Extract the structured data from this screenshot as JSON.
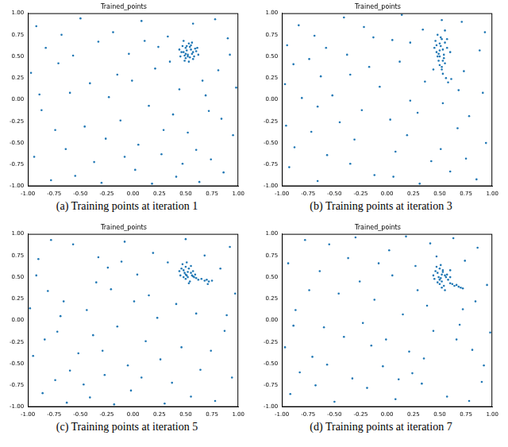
{
  "chart_data": [
    {
      "type": "scatter",
      "title": "Trained_points",
      "caption": "(a) Training points at iteration 1",
      "color": "#1f77b4",
      "marker": "circle",
      "grid": false,
      "xlim": [
        -1,
        1
      ],
      "ylim": [
        -1,
        1
      ],
      "xticks": [
        {
          "value": -1,
          "label": "-1.00"
        },
        {
          "value": -0.75,
          "label": "-0.75"
        },
        {
          "value": -0.5,
          "label": "-0.50"
        },
        {
          "value": -0.25,
          "label": "-0.25"
        },
        {
          "value": 0,
          "label": "0.00"
        },
        {
          "value": 0.25,
          "label": "0.25"
        },
        {
          "value": 0.5,
          "label": "0.50"
        },
        {
          "value": 0.75,
          "label": "0.75"
        },
        {
          "value": 1,
          "label": "1.00"
        }
      ],
      "yticks": [
        {
          "value": -1,
          "label": "-1.00"
        },
        {
          "value": -0.75,
          "label": "-0.75"
        },
        {
          "value": -0.5,
          "label": "-0.50"
        },
        {
          "value": -0.25,
          "label": "-0.25"
        },
        {
          "value": 0,
          "label": "0.00"
        },
        {
          "value": 0.25,
          "label": "0.25"
        },
        {
          "value": 0.5,
          "label": "0.50"
        },
        {
          "value": 0.75,
          "label": "0.75"
        },
        {
          "value": 1,
          "label": "1.00"
        }
      ],
      "x": [
        -0.92,
        -0.71,
        -0.55,
        -0.33,
        -0.12,
        0.08,
        0.27,
        0.44,
        0.63,
        0.81,
        0.95,
        -0.87,
        -0.64,
        -0.41,
        -0.19,
        0.02,
        0.21,
        0.38,
        0.57,
        0.74,
        0.9,
        -0.97,
        -0.78,
        -0.5,
        -0.26,
        -0.04,
        0.15,
        0.33,
        0.52,
        0.69,
        0.86,
        -0.83,
        -0.6,
        -0.37,
        -0.15,
        0.05,
        0.24,
        0.41,
        0.66,
        0.78,
        0.98,
        -0.94,
        -0.68,
        -0.46,
        -0.23,
        -0.01,
        0.18,
        0.35,
        0.6,
        0.84,
        -0.89,
        -0.57,
        -0.3,
        -0.08,
        0.11,
        0.29,
        0.47,
        0.72,
        0.92,
        -0.74,
        0.45,
        0.48,
        0.5,
        0.52,
        0.55,
        0.58,
        0.6,
        0.47,
        0.5,
        0.53,
        0.56,
        0.49,
        0.51,
        0.54,
        0.57,
        0.46,
        0.52,
        0.55,
        0.59,
        0.62,
        0.48,
        0.5,
        0.53,
        0.44,
        0.57,
        0.51,
        0.54,
        0.49,
        0.61,
        0.56
      ],
      "y": [
        0.85,
        0.42,
        -0.88,
        0.67,
        -0.24,
        0.91,
        -0.63,
        0.12,
        -0.95,
        0.34,
        -0.41,
        -0.12,
        -0.57,
        0.19,
        0.78,
        -0.81,
        0.36,
        -0.17,
        0.88,
        -0.69,
        0.71,
        0.31,
        -0.93,
        0.94,
        -0.45,
        0.53,
        -0.07,
        0.73,
        -0.38,
        0.05,
        -0.84,
        0.6,
        0.08,
        -0.72,
        0.29,
        -0.52,
        0.61,
        -0.89,
        0.22,
        0.93,
        0.14,
        -0.66,
        0.75,
        -0.31,
        0.03,
        0.22,
        -0.97,
        0.44,
        -0.58,
        -0.22,
        0.06,
        0.51,
        -0.96,
        -0.66,
        0.68,
        -0.35,
        -0.74,
        -0.13,
        0.52,
        -0.35,
        0.5,
        0.55,
        0.6,
        0.52,
        0.58,
        0.5,
        0.56,
        0.62,
        0.48,
        0.65,
        0.53,
        0.45,
        0.57,
        0.61,
        0.47,
        0.55,
        0.5,
        0.63,
        0.59,
        0.52,
        0.68,
        0.53,
        0.44,
        0.58,
        0.55,
        0.62,
        0.49,
        0.51,
        0.6,
        0.66
      ]
    },
    {
      "type": "scatter",
      "title": "Trained_points",
      "caption": "(b) Training points at iteration 3",
      "color": "#1f77b4",
      "marker": "circle",
      "grid": false,
      "xlim": [
        -1,
        1
      ],
      "ylim": [
        -1,
        1
      ],
      "xticks": [
        {
          "value": -1,
          "label": "-1.00"
        },
        {
          "value": -0.75,
          "label": "-0.75"
        },
        {
          "value": -0.5,
          "label": "-0.50"
        },
        {
          "value": -0.25,
          "label": "-0.25"
        },
        {
          "value": 0,
          "label": "0.00"
        },
        {
          "value": 0.25,
          "label": "0.25"
        },
        {
          "value": 0.5,
          "label": "0.50"
        },
        {
          "value": 0.75,
          "label": "0.75"
        },
        {
          "value": 1,
          "label": "1.00"
        }
      ],
      "yticks": [
        {
          "value": -1,
          "label": "-1.00"
        },
        {
          "value": -0.75,
          "label": "-0.75"
        },
        {
          "value": -0.5,
          "label": "-0.50"
        },
        {
          "value": -0.25,
          "label": "-0.25"
        },
        {
          "value": 0,
          "label": "0.00"
        },
        {
          "value": 0.25,
          "label": "0.25"
        },
        {
          "value": 0.5,
          "label": "0.50"
        },
        {
          "value": 0.75,
          "label": "0.75"
        },
        {
          "value": 1,
          "label": "1.00"
        }
      ],
      "x": [
        0.85,
        0.42,
        -0.88,
        0.67,
        -0.24,
        0.91,
        -0.63,
        0.12,
        -0.95,
        0.34,
        -0.41,
        -0.12,
        -0.57,
        0.19,
        0.78,
        -0.81,
        0.36,
        -0.17,
        0.88,
        -0.69,
        0.71,
        0.31,
        -0.93,
        0.94,
        -0.45,
        0.53,
        -0.07,
        0.73,
        -0.38,
        0.05,
        -0.84,
        0.6,
        0.08,
        -0.72,
        0.29,
        -0.52,
        0.61,
        -0.89,
        0.22,
        0.93,
        0.14,
        -0.66,
        0.75,
        -0.31,
        0.03,
        0.22,
        -0.97,
        0.44,
        -0.58,
        -0.22,
        0.06,
        0.51,
        -0.96,
        -0.66,
        0.68,
        -0.35,
        -0.74,
        -0.13,
        0.52,
        -0.35,
        0.45,
        0.47,
        0.5,
        0.52,
        0.48,
        0.55,
        0.5,
        0.53,
        0.46,
        0.49,
        0.51,
        0.54,
        0.57,
        0.5,
        0.52,
        0.55,
        0.53,
        0.56,
        0.58,
        0.54,
        0.6,
        0.51,
        0.48,
        0.5,
        0.47,
        0.52,
        0.55,
        0.49,
        0.53,
        0.57
      ],
      "y": [
        -0.92,
        -0.71,
        -0.55,
        -0.33,
        -0.12,
        0.08,
        0.27,
        0.44,
        0.63,
        0.81,
        0.95,
        -0.87,
        -0.64,
        -0.41,
        -0.19,
        0.02,
        0.21,
        0.38,
        0.57,
        0.74,
        0.9,
        -0.97,
        -0.78,
        -0.5,
        -0.26,
        -0.04,
        0.15,
        0.33,
        0.52,
        0.69,
        0.86,
        -0.83,
        -0.6,
        -0.37,
        -0.15,
        0.05,
        0.24,
        0.41,
        0.66,
        0.78,
        0.98,
        -0.94,
        -0.68,
        -0.46,
        -0.23,
        -0.01,
        0.18,
        0.35,
        0.6,
        0.84,
        -0.89,
        -0.57,
        -0.3,
        -0.08,
        0.11,
        0.29,
        0.47,
        0.72,
        0.92,
        -0.74,
        0.6,
        0.55,
        0.65,
        0.7,
        0.75,
        0.8,
        0.5,
        0.58,
        0.68,
        0.45,
        0.62,
        0.52,
        0.6,
        0.4,
        0.35,
        0.42,
        0.3,
        0.25,
        0.2,
        0.48,
        0.55,
        0.72,
        0.5,
        0.57,
        0.63,
        0.38,
        0.66,
        0.53,
        0.45,
        0.7
      ]
    },
    {
      "type": "scatter",
      "title": "Trained_points",
      "caption": "(c) Training points at iteration 5",
      "color": "#1f77b4",
      "marker": "circle",
      "grid": false,
      "xlim": [
        -1,
        1
      ],
      "ylim": [
        -1,
        1
      ],
      "xticks": [
        {
          "value": -1,
          "label": "-1.00"
        },
        {
          "value": -0.75,
          "label": "-0.75"
        },
        {
          "value": -0.5,
          "label": "-0.50"
        },
        {
          "value": -0.25,
          "label": "-0.25"
        },
        {
          "value": 0,
          "label": "0.00"
        },
        {
          "value": 0.25,
          "label": "0.25"
        },
        {
          "value": 0.5,
          "label": "0.50"
        },
        {
          "value": 0.75,
          "label": "0.75"
        },
        {
          "value": 1,
          "label": "1.00"
        }
      ],
      "yticks": [
        {
          "value": -1,
          "label": "-1.00"
        },
        {
          "value": -0.75,
          "label": "-0.75"
        },
        {
          "value": -0.5,
          "label": "-0.50"
        },
        {
          "value": -0.25,
          "label": "-0.25"
        },
        {
          "value": 0,
          "label": "0.00"
        },
        {
          "value": 0.25,
          "label": "0.25"
        },
        {
          "value": 0.5,
          "label": "0.50"
        },
        {
          "value": 0.75,
          "label": "0.75"
        },
        {
          "value": 1,
          "label": "1.00"
        }
      ],
      "x": [
        0.92,
        0.71,
        0.55,
        0.33,
        0.12,
        -0.08,
        -0.27,
        -0.44,
        -0.63,
        -0.81,
        -0.95,
        0.87,
        0.64,
        0.41,
        0.19,
        -0.02,
        -0.21,
        -0.38,
        -0.57,
        -0.74,
        -0.9,
        0.97,
        0.78,
        0.5,
        0.26,
        0.04,
        -0.15,
        -0.33,
        -0.52,
        -0.69,
        -0.86,
        0.83,
        0.6,
        0.37,
        0.15,
        -0.05,
        -0.24,
        -0.41,
        -0.66,
        -0.78,
        -0.98,
        0.94,
        0.68,
        0.46,
        0.23,
        0.01,
        -0.18,
        -0.35,
        -0.6,
        -0.84,
        0.89,
        0.57,
        0.3,
        0.08,
        -0.11,
        -0.29,
        -0.47,
        -0.72,
        -0.92,
        0.74,
        0.45,
        0.48,
        0.5,
        0.52,
        0.55,
        0.47,
        0.5,
        0.53,
        0.56,
        0.49,
        0.51,
        0.54,
        0.58,
        0.46,
        0.52,
        0.6,
        0.62,
        0.65,
        0.68,
        0.7,
        0.72,
        0.75,
        0.5,
        0.53,
        0.48,
        0.55,
        0.57,
        0.51,
        0.44,
        0.59
      ],
      "y": [
        0.85,
        0.42,
        -0.88,
        0.67,
        -0.24,
        0.91,
        -0.63,
        0.12,
        -0.95,
        0.34,
        -0.41,
        -0.12,
        -0.57,
        0.19,
        0.78,
        -0.81,
        0.36,
        -0.17,
        0.88,
        -0.69,
        0.71,
        0.31,
        -0.93,
        0.94,
        -0.45,
        0.53,
        -0.07,
        0.73,
        -0.38,
        0.05,
        -0.84,
        0.6,
        0.08,
        -0.72,
        0.29,
        -0.52,
        0.61,
        -0.89,
        0.22,
        0.93,
        0.14,
        -0.66,
        0.75,
        -0.31,
        0.03,
        0.22,
        -0.97,
        0.44,
        -0.58,
        -0.22,
        0.06,
        0.51,
        -0.96,
        -0.66,
        0.68,
        -0.35,
        -0.74,
        -0.13,
        0.52,
        -0.35,
        0.52,
        0.58,
        0.62,
        0.5,
        0.55,
        0.65,
        0.48,
        0.6,
        0.52,
        0.55,
        0.67,
        0.45,
        0.5,
        0.6,
        0.56,
        0.49,
        0.47,
        0.48,
        0.46,
        0.47,
        0.45,
        0.46,
        0.53,
        0.43,
        0.5,
        0.63,
        0.57,
        0.52,
        0.57,
        0.53
      ]
    },
    {
      "type": "scatter",
      "title": "Trained_points",
      "caption": "(d) Training points at iteration 7",
      "color": "#1f77b4",
      "marker": "circle",
      "grid": false,
      "xlim": [
        -1,
        1
      ],
      "ylim": [
        -1,
        1
      ],
      "xticks": [
        {
          "value": -1,
          "label": "-1.00"
        },
        {
          "value": -0.75,
          "label": "-0.75"
        },
        {
          "value": -0.5,
          "label": "-0.50"
        },
        {
          "value": -0.25,
          "label": "-0.25"
        },
        {
          "value": 0,
          "label": "0.00"
        },
        {
          "value": 0.25,
          "label": "0.25"
        },
        {
          "value": 0.5,
          "label": "0.50"
        },
        {
          "value": 0.75,
          "label": "0.75"
        },
        {
          "value": 1,
          "label": "1.00"
        }
      ],
      "yticks": [
        {
          "value": -1,
          "label": "-1.00"
        },
        {
          "value": -0.75,
          "label": "-0.75"
        },
        {
          "value": -0.5,
          "label": "-0.50"
        },
        {
          "value": -0.25,
          "label": "-0.25"
        },
        {
          "value": 0,
          "label": "0.00"
        },
        {
          "value": 0.25,
          "label": "0.25"
        },
        {
          "value": 0.5,
          "label": "0.50"
        },
        {
          "value": 0.75,
          "label": "0.75"
        },
        {
          "value": 1,
          "label": "1.00"
        }
      ],
      "x": [
        -0.92,
        -0.71,
        -0.55,
        -0.33,
        -0.12,
        0.08,
        0.27,
        0.44,
        0.63,
        0.81,
        0.95,
        -0.87,
        -0.64,
        -0.41,
        -0.19,
        0.02,
        0.21,
        0.38,
        0.57,
        0.74,
        0.9,
        -0.97,
        -0.78,
        -0.5,
        -0.26,
        -0.04,
        0.15,
        0.33,
        0.52,
        0.69,
        0.86,
        -0.83,
        -0.6,
        -0.37,
        -0.15,
        0.05,
        0.24,
        0.41,
        0.66,
        0.78,
        0.98,
        -0.94,
        -0.68,
        -0.46,
        -0.23,
        -0.01,
        0.18,
        0.35,
        0.6,
        0.84,
        -0.89,
        -0.57,
        -0.3,
        -0.08,
        0.11,
        0.29,
        0.47,
        0.72,
        0.92,
        -0.74,
        0.45,
        0.48,
        0.5,
        0.52,
        0.55,
        0.47,
        0.5,
        0.53,
        0.56,
        0.49,
        0.51,
        0.54,
        0.58,
        0.46,
        0.52,
        0.6,
        0.62,
        0.64,
        0.66,
        0.68,
        0.7,
        0.72,
        0.5,
        0.53,
        0.48,
        0.55,
        0.57,
        0.51,
        0.44,
        0.6
      ],
      "y": [
        -0.85,
        -0.42,
        0.88,
        -0.67,
        0.24,
        -0.91,
        0.63,
        -0.12,
        0.95,
        -0.34,
        0.41,
        0.12,
        0.57,
        -0.19,
        -0.78,
        0.81,
        -0.36,
        0.17,
        -0.88,
        0.69,
        -0.71,
        -0.31,
        0.93,
        -0.94,
        0.45,
        -0.53,
        0.07,
        -0.73,
        0.38,
        -0.05,
        0.84,
        -0.6,
        -0.08,
        0.72,
        -0.29,
        0.52,
        -0.61,
        0.89,
        -0.22,
        -0.93,
        -0.14,
        0.66,
        -0.75,
        0.31,
        -0.03,
        -0.22,
        0.97,
        -0.44,
        0.58,
        0.22,
        -0.06,
        -0.51,
        0.96,
        0.66,
        -0.68,
        0.35,
        0.74,
        0.13,
        -0.52,
        0.35,
        0.48,
        0.55,
        0.6,
        0.45,
        0.52,
        0.62,
        0.42,
        0.56,
        0.5,
        0.5,
        0.64,
        0.4,
        0.47,
        0.57,
        0.53,
        0.43,
        0.42,
        0.4,
        0.41,
        0.39,
        0.38,
        0.37,
        0.47,
        0.58,
        0.44,
        0.35,
        0.53,
        0.49,
        0.52,
        0.5
      ]
    }
  ]
}
